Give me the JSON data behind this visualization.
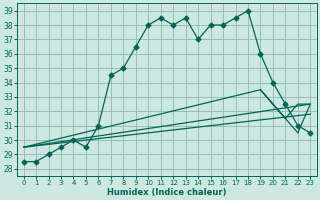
{
  "xlabel": "Humidex (Indice chaleur)",
  "bg_color": "#cce8e0",
  "grid_color": "#99bbbb",
  "line_color": "#006655",
  "xlim": [
    -0.5,
    23.5
  ],
  "ylim": [
    27.5,
    39.5
  ],
  "yticks": [
    28,
    29,
    30,
    31,
    32,
    33,
    34,
    35,
    36,
    37,
    38,
    39
  ],
  "xticks": [
    0,
    1,
    2,
    3,
    4,
    5,
    6,
    7,
    8,
    9,
    10,
    11,
    12,
    13,
    14,
    15,
    16,
    17,
    18,
    19,
    20,
    21,
    22,
    23
  ],
  "main_x": [
    0,
    1,
    2,
    3,
    4,
    5,
    6,
    7,
    8,
    9,
    10,
    11,
    12,
    13,
    14,
    15,
    16,
    17,
    18,
    19,
    20,
    21,
    22,
    23
  ],
  "main_y": [
    28.5,
    28.5,
    29.0,
    29.5,
    30.0,
    29.5,
    31.0,
    34.5,
    35.0,
    36.5,
    38.0,
    38.5,
    38.0,
    38.5,
    37.0,
    38.0,
    38.0,
    38.5,
    39.0,
    36.0,
    34.0,
    32.5,
    31.0,
    30.5
  ],
  "ref_lines": [
    {
      "x": [
        0,
        19
      ],
      "y": [
        29.5,
        33.5
      ]
    },
    {
      "x": [
        0,
        23
      ],
      "y": [
        29.5,
        32.5
      ]
    },
    {
      "x": [
        0,
        23
      ],
      "y": [
        29.5,
        31.8
      ]
    }
  ],
  "triangle_x": [
    19,
    20,
    21,
    22,
    23,
    22,
    21,
    20,
    19
  ],
  "triangle_y": [
    33.5,
    32.5,
    31.5,
    30.5,
    32.5,
    32.5,
    31.5,
    32.5,
    33.5
  ]
}
